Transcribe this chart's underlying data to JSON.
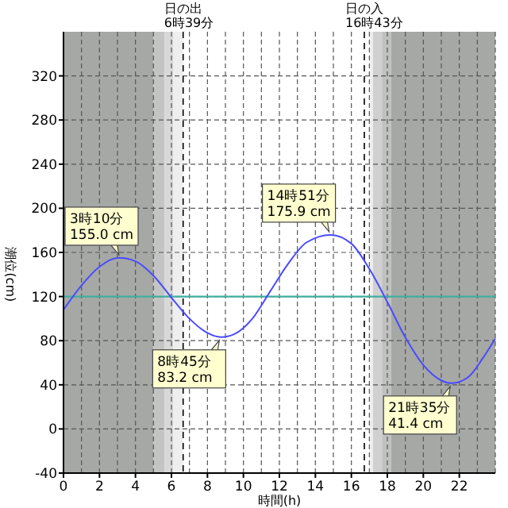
{
  "chart_data": {
    "type": "line",
    "xlabel": "時間(h)",
    "ylabel": "潮位(cm)",
    "xlim": [
      0,
      24
    ],
    "xticks": [
      0,
      2,
      4,
      6,
      8,
      10,
      12,
      14,
      16,
      18,
      20,
      22
    ],
    "ylim": [
      -40,
      360
    ],
    "yticks": [
      -40,
      0,
      40,
      80,
      120,
      160,
      200,
      240,
      280,
      320
    ],
    "grid": true,
    "series": [
      {
        "color": "#4a4aff",
        "x": [
          0,
          1,
          2,
          3,
          3.167,
          4,
          5,
          6,
          7,
          8,
          8.75,
          9.5,
          10.5,
          11.5,
          12.5,
          13.5,
          14.85,
          16,
          17,
          18,
          19,
          20,
          21,
          21.583,
          22.5,
          23.3,
          24
        ],
        "values": [
          108,
          130,
          147,
          155,
          155.0,
          152,
          139,
          119,
          100,
          87,
          83.2,
          86,
          100,
          125,
          150,
          169,
          175.9,
          168,
          145,
          115,
          83,
          58,
          44,
          41.4,
          47,
          64,
          82
        ]
      }
    ],
    "bands": [
      {
        "axis": "x",
        "from": 0,
        "to": 5.0,
        "color": "#a6a8a6"
      },
      {
        "axis": "x",
        "from": 5.0,
        "to": 5.6,
        "color": "#c4c4c4"
      },
      {
        "axis": "x",
        "from": 5.6,
        "to": 6.1,
        "color": "#d8d8d8"
      },
      {
        "axis": "x",
        "from": 6.1,
        "to": 6.65,
        "color": "#eeeeee"
      },
      {
        "axis": "x",
        "from": 17.0,
        "to": 17.2,
        "color": "#eeeeee"
      },
      {
        "axis": "x",
        "from": 17.2,
        "to": 17.7,
        "color": "#d0d0d0"
      },
      {
        "axis": "x",
        "from": 17.7,
        "to": 18.2,
        "color": "#c0c0c0"
      },
      {
        "axis": "x",
        "from": 18.2,
        "to": 24,
        "color": "#a6a8a6"
      }
    ],
    "ref_lines": [
      {
        "axis": "y",
        "value": 120,
        "color": "#40b0a0",
        "line_style": "solid"
      },
      {
        "axis": "x",
        "value": 6.65,
        "label": "日の出\n6時39分",
        "color": "#000000",
        "line_style": "dashed"
      },
      {
        "axis": "x",
        "value": 16.72,
        "label": "日の入\n16時43分",
        "color": "#000000",
        "line_style": "dashed"
      }
    ],
    "annotations": [
      {
        "text": "3時10分\n155.0 cm",
        "x": 3.167,
        "y": 155.0
      },
      {
        "text": "8時45分\n83.2 cm",
        "x": 8.75,
        "y": 83.2
      },
      {
        "text": "14時51分\n175.9 cm",
        "x": 14.85,
        "y": 175.9
      },
      {
        "text": "21時35分\n41.4 cm",
        "x": 21.583,
        "y": 41.4
      }
    ]
  }
}
